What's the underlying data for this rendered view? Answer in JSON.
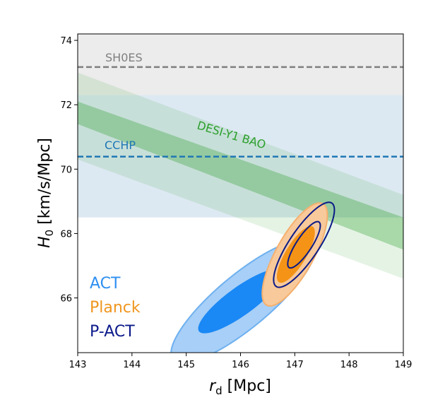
{
  "chart_data": {
    "type": "contour",
    "xlim": [
      143,
      149
    ],
    "ylim": [
      64.3,
      74.2
    ],
    "xticks": [
      143,
      144,
      145,
      146,
      147,
      148,
      149
    ],
    "yticks": [
      66,
      68,
      70,
      72,
      74
    ],
    "x_tick_labels": [
      "143",
      "144",
      "145",
      "146",
      "147",
      "148",
      "149"
    ],
    "y_tick_labels": [
      "66",
      "68",
      "70",
      "72",
      "74"
    ],
    "xlabel": {
      "symbol": "r",
      "sub": "d",
      "unit": " [Mpc]"
    },
    "ylabel": {
      "symbol": "H",
      "sub": "0",
      "unit": " [km/s/Mpc]"
    },
    "horizontal_bands": [
      {
        "name": "SH0ES",
        "label": "SH0ES",
        "center": 73.17,
        "y1": 72.3,
        "y2": 74.2,
        "fill": "#ececec",
        "line_color": "#7f7f7f"
      },
      {
        "name": "CCHP",
        "label": "CCHP",
        "center": 70.39,
        "y1": 68.5,
        "y2": 72.3,
        "fill": "#dde9f2",
        "line_color": "#1f77b4"
      }
    ],
    "diagonal_band": {
      "name": "DESI-Y1 BAO",
      "label": "DESI-Y1 BAO",
      "color": "#2ca02c",
      "outer": {
        "upper": [
          [
            143,
            73.0
          ],
          [
            149,
            69.2
          ]
        ],
        "lower": [
          [
            143,
            70.3
          ],
          [
            149,
            66.6
          ]
        ]
      },
      "inner": {
        "upper": [
          [
            143,
            72.1
          ],
          [
            149,
            68.5
          ]
        ],
        "lower": [
          [
            143,
            71.4
          ],
          [
            149,
            67.5
          ]
        ]
      }
    },
    "ellipses": [
      {
        "name": "ACT",
        "color": "#2e8ff0",
        "outer": {
          "cx": 146.05,
          "cy": 65.9,
          "rx": 1.33,
          "ry": 1.92,
          "rho": 0.84
        },
        "inner": {
          "cx": 146.0,
          "cy": 65.9,
          "rx": 0.78,
          "ry": 1.0,
          "rho": 0.85
        },
        "fill_outer": "#a7cff7",
        "fill_inner": "#1a88f5",
        "stroke": "#6eb0ef"
      },
      {
        "name": "Planck",
        "color": "#f0961e",
        "outer": {
          "cx": 147.0,
          "cy": 67.35,
          "rx": 0.6,
          "ry": 1.6,
          "rho": 0.76
        },
        "inner": {
          "cx": 147.02,
          "cy": 67.35,
          "rx": 0.35,
          "ry": 0.88,
          "rho": 0.78
        },
        "fill_outer": "#f8c99a",
        "fill_inner": "#f49316",
        "stroke": "#f5b06e"
      },
      {
        "name": "P-ACT",
        "color": "#0c1a8a",
        "outer": {
          "cx": 147.17,
          "cy": 67.65,
          "rx": 0.56,
          "ry": 1.32,
          "rho": 0.82
        },
        "inner": {
          "cx": 147.17,
          "cy": 67.65,
          "rx": 0.3,
          "ry": 0.72,
          "rho": 0.83
        },
        "stroke": "#0a1a87"
      }
    ],
    "legend": {
      "placement": "lower-left",
      "entries": [
        {
          "label": "ACT",
          "color": "#2e8ff0"
        },
        {
          "label": "Planck",
          "color": "#f0961e"
        },
        {
          "label": "P-ACT",
          "color": "#0c1a8a"
        }
      ]
    }
  }
}
